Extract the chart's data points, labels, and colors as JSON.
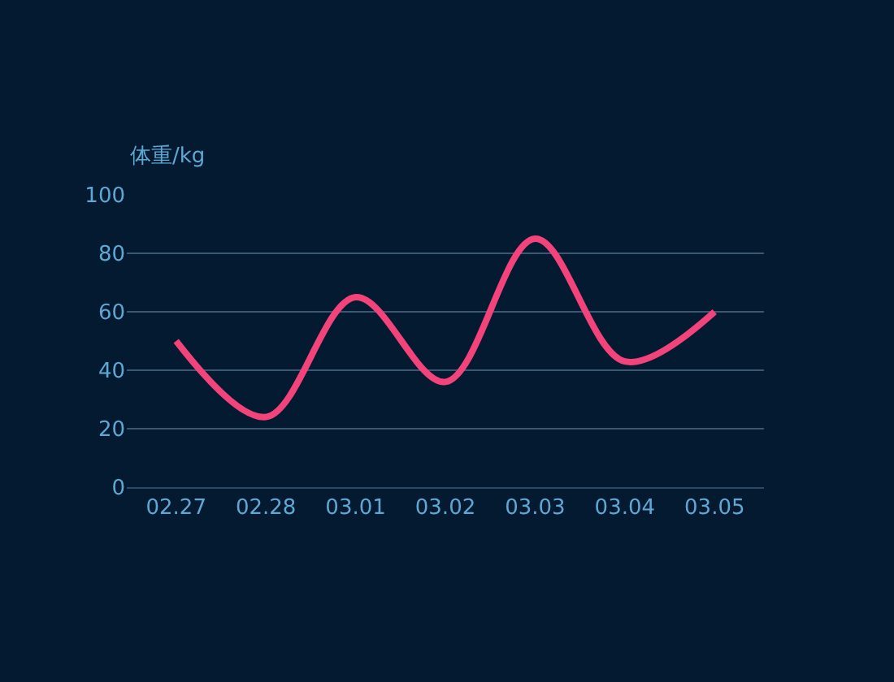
{
  "chart_data": {
    "type": "line",
    "ylabel": "体重/kg",
    "categories": [
      "02.27",
      "02.28",
      "03.01",
      "03.02",
      "03.03",
      "03.04",
      "03.05"
    ],
    "series": [
      {
        "color": "#f2437b",
        "values": [
          50,
          24,
          65,
          36,
          85,
          43,
          60
        ]
      }
    ],
    "ylim": [
      0,
      100
    ],
    "yticks": [
      0,
      20,
      40,
      60,
      80,
      100
    ],
    "grid": "y",
    "legend": false,
    "marker": "none",
    "line_style": "solid"
  }
}
